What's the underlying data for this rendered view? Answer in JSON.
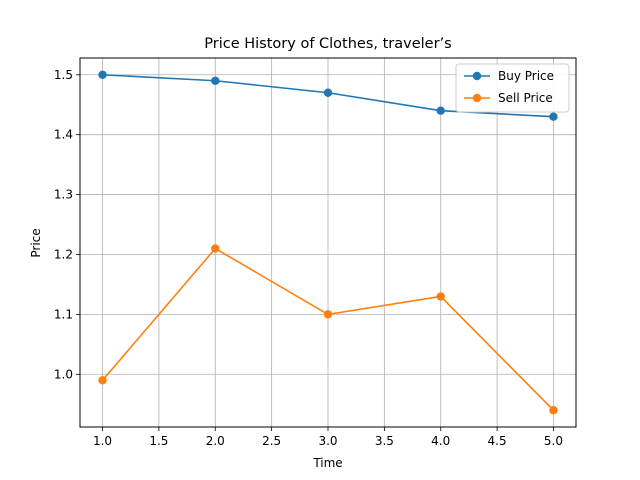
{
  "chart_data": {
    "type": "line",
    "title": "Price History of Clothes, traveler’s",
    "xlabel": "Time",
    "ylabel": "Price",
    "x": [
      1.0,
      2.0,
      3.0,
      4.0,
      5.0
    ],
    "xlim": [
      0.8,
      5.2
    ],
    "ylim": [
      0.912,
      1.528
    ],
    "xticks": [
      1.0,
      1.5,
      2.0,
      2.5,
      3.0,
      3.5,
      4.0,
      4.5,
      5.0
    ],
    "xtick_labels": [
      "1.0",
      "1.5",
      "2.0",
      "2.5",
      "3.0",
      "3.5",
      "4.0",
      "4.5",
      "5.0"
    ],
    "yticks": [
      1.0,
      1.1,
      1.2,
      1.3,
      1.4,
      1.5
    ],
    "ytick_labels": [
      "1.0",
      "1.1",
      "1.2",
      "1.3",
      "1.4",
      "1.5"
    ],
    "grid": true,
    "legend_position": "top-right",
    "series": [
      {
        "name": "Buy Price",
        "color": "#1f77b4",
        "marker": "circle",
        "values": [
          1.5,
          1.49,
          1.47,
          1.44,
          1.43
        ]
      },
      {
        "name": "Sell Price",
        "color": "#ff7f0e",
        "marker": "circle",
        "values": [
          0.99,
          1.21,
          1.1,
          1.13,
          0.94
        ]
      }
    ]
  }
}
